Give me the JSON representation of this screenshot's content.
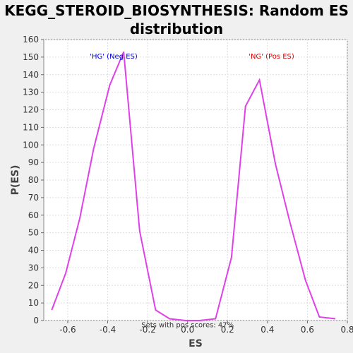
{
  "chart_data": {
    "type": "line",
    "title": "KEGG_STEROID_BIOSYNTHESIS: Random ES distribution",
    "xlabel": "ES",
    "ylabel": "P(ES)",
    "xlim": [
      -0.72,
      0.8
    ],
    "ylim": [
      0,
      160
    ],
    "x_ticks": [
      "-0.6",
      "-0.4",
      "-0.2",
      "0.0",
      "0.2",
      "0.4",
      "0.6",
      "0.8"
    ],
    "y_ticks": [
      "0",
      "10",
      "20",
      "30",
      "40",
      "50",
      "60",
      "70",
      "80",
      "90",
      "100",
      "110",
      "120",
      "130",
      "140",
      "150",
      "160"
    ],
    "grid": true,
    "series_color": "#e040e8",
    "series": [
      {
        "x": [
          -0.68,
          -0.61,
          -0.54,
          -0.47,
          -0.39,
          -0.32,
          -0.24,
          -0.16,
          -0.09,
          -0.01,
          0.06,
          0.14,
          0.22,
          0.29,
          0.36,
          0.44,
          0.51,
          0.59,
          0.66,
          0.74
        ],
        "values": [
          6,
          27,
          58,
          98,
          134,
          153,
          51,
          6,
          1,
          0,
          0,
          1,
          36,
          122,
          137,
          89,
          57,
          23,
          2,
          1
        ]
      }
    ],
    "annotations": [
      {
        "text": "'HG' (Neg ES)",
        "x": -0.37,
        "y": 154,
        "color": "#0000dd"
      },
      {
        "text": "'NG' (Pos ES)",
        "x": 0.42,
        "y": 154,
        "color": "#dd0000"
      },
      {
        "text": "Sets with pos scores: 47%",
        "x": 0.0,
        "y": 1,
        "color": "#333333"
      }
    ]
  }
}
